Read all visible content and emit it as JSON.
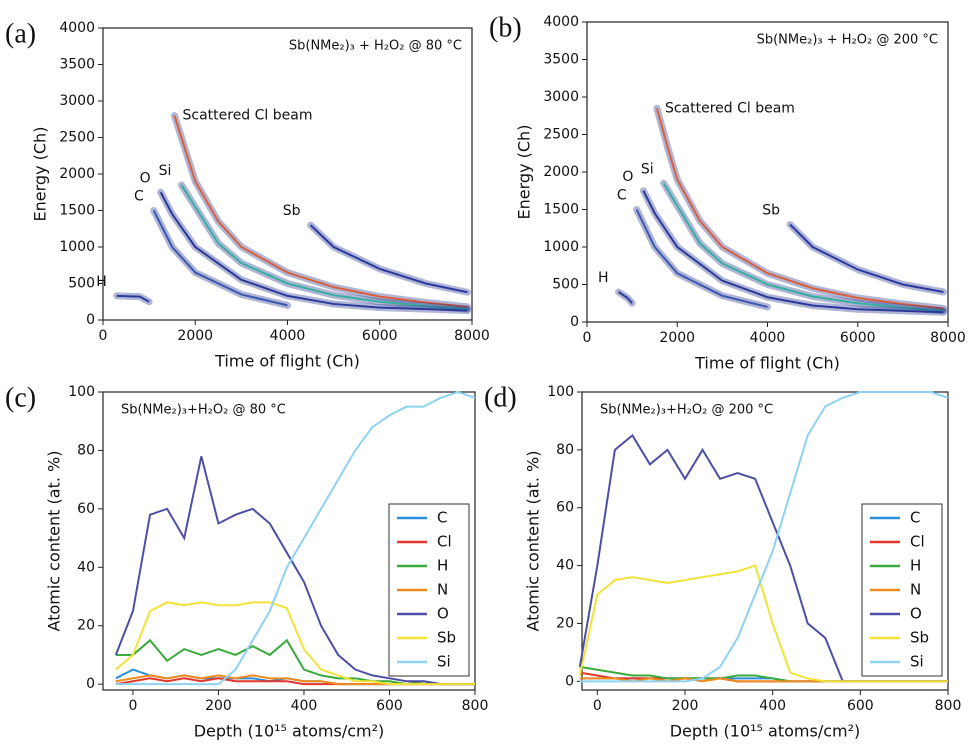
{
  "chart_data": [
    {
      "type": "scatter",
      "panel_label": "(a)",
      "subtitle": "Sb(NMe₂)₃ + H₂O₂ @ 80 °C",
      "xlabel": "Time of flight (Ch)",
      "ylabel": "Energy (Ch)",
      "xlim": [
        0,
        8000
      ],
      "ylim": [
        0,
        4000
      ],
      "xticks": [
        0,
        2000,
        4000,
        6000,
        8000
      ],
      "yticks": [
        0,
        500,
        1000,
        1500,
        2000,
        2500,
        3000,
        3500,
        4000
      ],
      "series": [
        {
          "name": "Scattered Cl beam",
          "color": "#d9603a",
          "x": [
            1550,
            1800,
            2000,
            2500,
            3000,
            4000,
            5000,
            6000,
            7000,
            7900
          ],
          "values": [
            2800,
            2300,
            1900,
            1350,
            1000,
            650,
            450,
            320,
            240,
            180
          ]
        },
        {
          "name": "Si",
          "color": "#35b0a0",
          "x": [
            1700,
            2000,
            2500,
            3000,
            4000,
            5000,
            6000,
            7000,
            7900
          ],
          "values": [
            1850,
            1550,
            1050,
            780,
            500,
            340,
            250,
            190,
            150
          ]
        },
        {
          "name": "O",
          "color": "#2a3a9a",
          "x": [
            1250,
            1500,
            2000,
            3000,
            4000,
            5000,
            6000,
            7900
          ],
          "values": [
            1750,
            1450,
            1000,
            550,
            330,
            220,
            170,
            130
          ]
        },
        {
          "name": "C",
          "color": "#3a58b0",
          "x": [
            1100,
            1500,
            2000,
            3000,
            4000
          ],
          "values": [
            1500,
            1000,
            650,
            350,
            200
          ]
        },
        {
          "name": "Sb",
          "color": "#2a3aa0",
          "x": [
            4500,
            5000,
            6000,
            7000,
            7900
          ],
          "values": [
            1300,
            1000,
            700,
            500,
            380
          ]
        },
        {
          "name": "H",
          "color": "#2a3a9a",
          "x": [
            300,
            800,
            1000
          ],
          "values": [
            330,
            320,
            250
          ]
        }
      ]
    },
    {
      "type": "scatter",
      "panel_label": "(b)",
      "subtitle": "Sb(NMe₂)₃ + H₂O₂ @ 200 °C",
      "xlabel": "Time of flight (Ch)",
      "ylabel": "Energy (Ch)",
      "xlim": [
        0,
        8000
      ],
      "ylim": [
        0,
        4000
      ],
      "xticks": [
        0,
        2000,
        4000,
        6000,
        8000
      ],
      "yticks": [
        0,
        500,
        1000,
        1500,
        2000,
        2500,
        3000,
        3500,
        4000
      ],
      "series": [
        {
          "name": "Scattered Cl beam",
          "color": "#d9603a",
          "x": [
            1550,
            1800,
            2000,
            2500,
            3000,
            4000,
            5000,
            6000,
            7000,
            7900
          ],
          "values": [
            2850,
            2300,
            1900,
            1350,
            1000,
            650,
            450,
            320,
            240,
            180
          ]
        },
        {
          "name": "Si",
          "color": "#35b0a0",
          "x": [
            1700,
            2000,
            2500,
            3000,
            4000,
            5000,
            6000,
            7000,
            7900
          ],
          "values": [
            1850,
            1550,
            1050,
            780,
            500,
            340,
            250,
            190,
            150
          ]
        },
        {
          "name": "O",
          "color": "#2a3a9a",
          "x": [
            1250,
            1500,
            2000,
            3000,
            4000,
            5000,
            6000,
            7900
          ],
          "values": [
            1750,
            1450,
            1000,
            550,
            330,
            220,
            170,
            130
          ]
        },
        {
          "name": "C",
          "color": "#3a58b0",
          "x": [
            1100,
            1500,
            2000,
            3000,
            4000
          ],
          "values": [
            1500,
            1000,
            650,
            350,
            200
          ]
        },
        {
          "name": "Sb",
          "color": "#2a3aa0",
          "x": [
            4500,
            5000,
            6000,
            7000,
            7900
          ],
          "values": [
            1300,
            1000,
            700,
            500,
            400
          ]
        },
        {
          "name": "H",
          "color": "#2a3a9a",
          "x": [
            700,
            900,
            1000
          ],
          "values": [
            400,
            320,
            250
          ]
        }
      ]
    },
    {
      "type": "line",
      "panel_label": "(c)",
      "subtitle": "Sb(NMe₂)₃+H₂O₂ @ 80 °C",
      "xlabel": "Depth (10¹⁵ atoms/cm²)",
      "ylabel": "Atomic content (at. %)",
      "xlim": [
        -70,
        800
      ],
      "ylim": [
        -2,
        100
      ],
      "xticks": [
        0,
        200,
        400,
        600,
        800
      ],
      "yticks": [
        0,
        20,
        40,
        60,
        80,
        100
      ],
      "legend": "lower right",
      "x": [
        -40,
        0,
        40,
        80,
        120,
        160,
        200,
        240,
        280,
        320,
        360,
        400,
        440,
        480,
        520,
        560,
        600,
        640,
        680,
        720,
        760,
        800
      ],
      "series": [
        {
          "name": "C",
          "color": "#2b8fdc",
          "values": [
            2,
            5,
            3,
            2,
            3,
            2,
            2,
            2,
            2,
            1,
            2,
            1,
            1,
            0,
            0,
            0,
            0,
            0,
            0,
            0,
            0,
            0
          ]
        },
        {
          "name": "Cl",
          "color": "#e2372b",
          "values": [
            0,
            1,
            2,
            1,
            2,
            1,
            2,
            1,
            1,
            1,
            1,
            0,
            0,
            0,
            0,
            0,
            0,
            0,
            0,
            0,
            0,
            0
          ]
        },
        {
          "name": "H",
          "color": "#3aaa3a",
          "values": [
            10,
            10,
            15,
            8,
            12,
            10,
            12,
            10,
            13,
            10,
            15,
            5,
            3,
            2,
            2,
            1,
            1,
            0,
            1,
            0,
            0,
            0
          ]
        },
        {
          "name": "N",
          "color": "#f08a1c",
          "values": [
            1,
            2,
            3,
            2,
            3,
            2,
            3,
            2,
            3,
            2,
            2,
            1,
            1,
            0,
            0,
            0,
            0,
            0,
            0,
            0,
            0,
            0
          ]
        },
        {
          "name": "O",
          "color": "#4d4fa6",
          "values": [
            10,
            25,
            58,
            60,
            50,
            78,
            55,
            58,
            60,
            55,
            45,
            35,
            20,
            10,
            5,
            3,
            2,
            1,
            1,
            0,
            0,
            0
          ]
        },
        {
          "name": "Sb",
          "color": "#f2e238",
          "values": [
            5,
            10,
            25,
            28,
            27,
            28,
            27,
            27,
            28,
            28,
            26,
            12,
            5,
            3,
            1,
            1,
            0,
            0,
            0,
            0,
            0,
            0
          ]
        },
        {
          "name": "Si",
          "color": "#8dd2f2",
          "values": [
            0,
            0,
            0,
            0,
            0,
            0,
            0,
            5,
            15,
            25,
            40,
            50,
            60,
            70,
            80,
            88,
            92,
            95,
            95,
            98,
            100,
            98
          ]
        }
      ]
    },
    {
      "type": "line",
      "panel_label": "(d)",
      "subtitle": "Sb(NMe₂)₃+H₂O₂ @ 200 °C",
      "xlabel": "Depth (10¹⁵ atoms/cm²)",
      "ylabel": "Atomic content (at. %)",
      "xlim": [
        -35,
        800
      ],
      "ylim": [
        -3,
        100
      ],
      "xticks": [
        0,
        200,
        400,
        600,
        800
      ],
      "yticks": [
        0,
        20,
        40,
        60,
        80,
        100
      ],
      "legend": "lower right",
      "x": [
        -40,
        0,
        40,
        80,
        120,
        160,
        200,
        240,
        280,
        320,
        360,
        400,
        440,
        480,
        520,
        560,
        600,
        640,
        680,
        720,
        760,
        800
      ],
      "series": [
        {
          "name": "C",
          "color": "#2b8fdc",
          "values": [
            1,
            1,
            1,
            1,
            1,
            1,
            1,
            1,
            1,
            1,
            1,
            1,
            0,
            0,
            0,
            0,
            0,
            0,
            0,
            0,
            0,
            0
          ]
        },
        {
          "name": "Cl",
          "color": "#e2372b",
          "values": [
            3,
            2,
            1,
            1,
            1,
            1,
            1,
            1,
            1,
            0,
            0,
            0,
            0,
            0,
            0,
            0,
            0,
            0,
            0,
            0,
            0,
            0
          ]
        },
        {
          "name": "H",
          "color": "#3aaa3a",
          "values": [
            5,
            4,
            3,
            2,
            2,
            1,
            1,
            1,
            1,
            2,
            2,
            1,
            0,
            0,
            0,
            0,
            0,
            0,
            0,
            0,
            0,
            0
          ]
        },
        {
          "name": "N",
          "color": "#f08a1c",
          "values": [
            1,
            1,
            1,
            0,
            1,
            0,
            1,
            0,
            1,
            0,
            0,
            0,
            0,
            0,
            0,
            0,
            0,
            0,
            0,
            0,
            0,
            0
          ]
        },
        {
          "name": "O",
          "color": "#4d4fa6",
          "values": [
            5,
            40,
            80,
            85,
            75,
            80,
            70,
            80,
            70,
            72,
            70,
            55,
            40,
            20,
            15,
            0,
            0,
            0,
            0,
            0,
            0,
            0
          ]
        },
        {
          "name": "Sb",
          "color": "#f2e238",
          "values": [
            2,
            30,
            35,
            36,
            35,
            34,
            35,
            36,
            37,
            38,
            40,
            20,
            3,
            1,
            0,
            0,
            0,
            0,
            0,
            0,
            0,
            0
          ]
        },
        {
          "name": "Si",
          "color": "#8dd2f2",
          "values": [
            0,
            0,
            0,
            0,
            0,
            0,
            0,
            1,
            5,
            15,
            30,
            45,
            65,
            85,
            95,
            98,
            100,
            100,
            100,
            100,
            100,
            98
          ]
        }
      ]
    }
  ]
}
